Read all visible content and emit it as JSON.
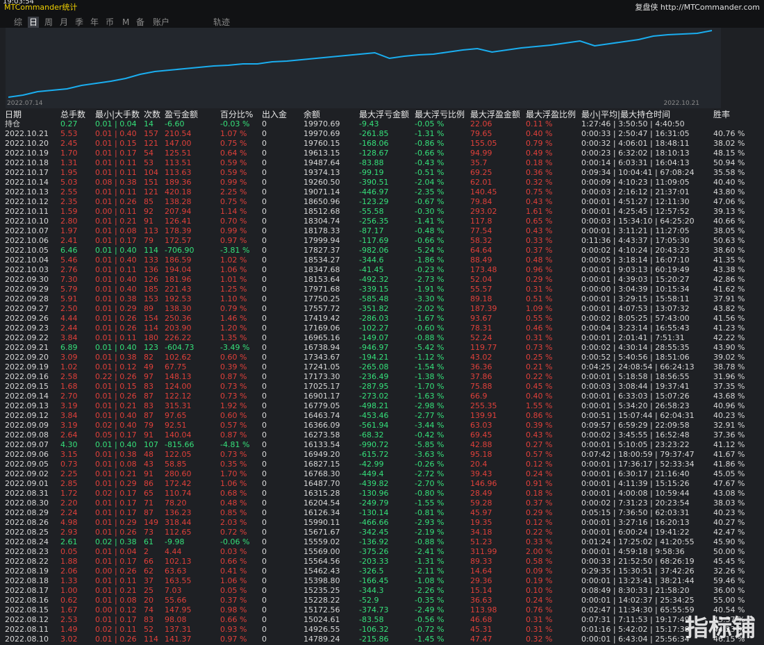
{
  "header": {
    "clock": "19:03:54",
    "title": "MTCommander统计",
    "brand": "复盘侠 http://MTCommander.com"
  },
  "tabs": [
    {
      "label": "综",
      "selected": false
    },
    {
      "label": "日",
      "selected": true
    },
    {
      "label": "周",
      "selected": false
    },
    {
      "label": "月",
      "selected": false
    },
    {
      "label": "季",
      "selected": false
    },
    {
      "label": "年",
      "selected": false
    },
    {
      "label": "币",
      "selected": false
    },
    {
      "label": "M",
      "selected": false
    },
    {
      "label": "备",
      "selected": false
    },
    {
      "label": "账户",
      "selected": false
    },
    {
      "label": "轨迹",
      "selected": false
    }
  ],
  "chart_data": {
    "type": "line",
    "color": "#1aaef0",
    "categories": [
      "2022.07.14",
      null,
      null,
      null,
      null,
      null,
      null,
      null,
      null,
      null,
      null,
      null,
      null,
      null,
      null,
      null,
      null,
      null,
      null,
      null,
      null,
      null,
      null,
      null,
      null,
      null,
      null,
      null,
      null,
      null,
      null,
      null,
      null,
      null,
      null,
      null,
      null,
      null,
      null,
      null,
      null,
      null,
      null,
      null,
      null,
      null,
      null,
      null,
      "2022.10.21"
    ],
    "values": [
      10,
      13,
      18,
      20,
      22,
      27,
      30,
      33,
      37,
      43,
      47,
      49,
      51,
      53,
      55,
      56,
      58,
      58,
      61,
      62,
      64,
      66,
      68,
      70,
      72,
      74,
      66,
      69,
      71,
      72,
      75,
      78,
      80,
      75,
      78,
      81,
      83,
      85,
      88,
      91,
      84,
      87,
      90,
      93,
      98,
      100,
      101,
      102,
      106
    ]
  },
  "table": {
    "columns": [
      "日期",
      "总手数",
      "最小|大手数",
      "次数",
      "盈亏金额",
      "百分比%",
      "出入金",
      "余额",
      "最大浮亏金额",
      "最大浮亏比例",
      "最大浮盈金额",
      "最大浮盈比例",
      "最小|平均|最大持仓时间",
      "胜率"
    ],
    "rows": [
      [
        "持仓",
        "0.27",
        "0.01 | 0.04",
        "14",
        "-6.60",
        "-0.03 %",
        "0",
        "19970.69",
        "-9.43",
        "-0.05 %",
        "22.06",
        "0.11 %",
        "1:27:46 | 3:50:50 | 4:40:50",
        ""
      ],
      [
        "2022.10.21",
        "5.53",
        "0.01 | 0.40",
        "157",
        "210.54",
        "1.07 %",
        "0",
        "19970.69",
        "-261.85",
        "-1.31 %",
        "79.65",
        "0.40 %",
        "0:00:33 | 2:50:47 | 16:31:05",
        "40.76 %"
      ],
      [
        "2022.10.20",
        "2.45",
        "0.01 | 0.15",
        "121",
        "147.00",
        "0.75 %",
        "0",
        "19760.15",
        "-168.06",
        "-0.86 %",
        "155.05",
        "0.79 %",
        "0:00:32 | 4:06:01 | 18:48:11",
        "38.02 %"
      ],
      [
        "2022.10.19",
        "1.70",
        "0.01 | 0.17",
        "54",
        "125.51",
        "0.64 %",
        "0",
        "19613.15",
        "-128.67",
        "-0.66 %",
        "94.99",
        "0.49 %",
        "0:00:23 | 6:32:02 | 18:10:13",
        "48.15 %"
      ],
      [
        "2022.10.18",
        "1.31",
        "0.01 | 0.11",
        "53",
        "113.51",
        "0.59 %",
        "0",
        "19487.64",
        "-83.88",
        "-0.43 %",
        "35.7",
        "0.18 %",
        "0:00:14 | 6:03:31 | 16:04:13",
        "50.94 %"
      ],
      [
        "2022.10.17",
        "1.95",
        "0.01 | 0.11",
        "104",
        "113.63",
        "0.59 %",
        "0",
        "19374.13",
        "-99.19",
        "-0.51 %",
        "69.25",
        "0.36 %",
        "0:09:34 | 10:04:41 | 67:08:24",
        "35.58 %"
      ],
      [
        "2022.10.14",
        "5.03",
        "0.08 | 0.38",
        "151",
        "189.36",
        "0.99 %",
        "0",
        "19260.50",
        "-390.51",
        "-2.04 %",
        "62.01",
        "0.32 %",
        "0:00:09 | 4:10:23 | 11:09:05",
        "40.40 %"
      ],
      [
        "2022.10.13",
        "2.55",
        "0.01 | 0.11",
        "121",
        "420.18",
        "2.25 %",
        "0",
        "19071.14",
        "-446.97",
        "-2.35 %",
        "140.45",
        "0.75 %",
        "0:00:03 | 2:16:12 | 21:37:01",
        "43.80 %"
      ],
      [
        "2022.10.12",
        "2.35",
        "0.01 | 0.26",
        "85",
        "138.28",
        "0.75 %",
        "0",
        "18650.96",
        "-123.29",
        "-0.67 %",
        "79.84",
        "0.43 %",
        "0:00:01 | 4:51:27 | 12:11:30",
        "47.06 %"
      ],
      [
        "2022.10.11",
        "1.59",
        "0.00 | 0.11",
        "92",
        "207.94",
        "1.14 %",
        "0",
        "18512.68",
        "-55.58",
        "-0.30 %",
        "293.02",
        "1.61 %",
        "0:00:01 | 4:25:45 | 12:57:52",
        "39.13 %"
      ],
      [
        "2022.10.10",
        "2.80",
        "0.01 | 0.21",
        "91",
        "126.41",
        "0.70 %",
        "0",
        "18304.74",
        "-256.35",
        "-1.41 %",
        "117.8",
        "0.65 %",
        "0:00:03 | 15:34:10 | 64:25:20",
        "40.66 %"
      ],
      [
        "2022.10.07",
        "1.97",
        "0.01 | 0.08",
        "113",
        "178.39",
        "0.99 %",
        "0",
        "18178.33",
        "-87.17",
        "-0.48 %",
        "77.54",
        "0.43 %",
        "0:00:01 | 3:11:21 | 11:27:05",
        "38.05 %"
      ],
      [
        "2022.10.06",
        "2.41",
        "0.01 | 0.17",
        "79",
        "172.57",
        "0.97 %",
        "0",
        "17999.94",
        "-117.69",
        "-0.66 %",
        "58.32",
        "0.33 %",
        "0:11:36 | 4:43:37 | 17:05:30",
        "50.63 %"
      ],
      [
        "2022.10.05",
        "6.46",
        "0.01 | 0.40",
        "114",
        "-706.90",
        "-3.81 %",
        "0",
        "17827.37",
        "-982.06",
        "-5.24 %",
        "64.64",
        "0.37 %",
        "0:00:02 | 4:10:24 | 20:43:23",
        "38.60 %"
      ],
      [
        "2022.10.04",
        "5.46",
        "0.01 | 0.40",
        "133",
        "186.59",
        "1.02 %",
        "0",
        "18534.27",
        "-344.6",
        "-1.86 %",
        "88.49",
        "0.48 %",
        "0:00:05 | 3:18:14 | 16:07:10",
        "41.35 %"
      ],
      [
        "2022.10.03",
        "2.76",
        "0.01 | 0.11",
        "136",
        "194.04",
        "1.06 %",
        "0",
        "18347.68",
        "-41.45",
        "-0.23 %",
        "173.48",
        "0.96 %",
        "0:00:01 | 9:03:13 | 60:19:49",
        "43.38 %"
      ],
      [
        "2022.09.30",
        "7.30",
        "0.01 | 0.40",
        "126",
        "181.96",
        "1.01 %",
        "0",
        "18153.64",
        "-492.32",
        "-2.73 %",
        "52.04",
        "0.29 %",
        "0:00:01 | 4:39:03 | 15:20:27",
        "42.86 %"
      ],
      [
        "2022.09.29",
        "5.79",
        "0.01 | 0.40",
        "185",
        "221.43",
        "1.25 %",
        "0",
        "17971.68",
        "-339.15",
        "-1.91 %",
        "55.57",
        "0.31 %",
        "0:00:00 | 3:04:39 | 10:15:34",
        "41.62 %"
      ],
      [
        "2022.09.28",
        "5.91",
        "0.01 | 0.38",
        "153",
        "192.53",
        "1.10 %",
        "0",
        "17750.25",
        "-585.48",
        "-3.30 %",
        "89.18",
        "0.51 %",
        "0:00:01 | 3:29:15 | 15:58:11",
        "37.91 %"
      ],
      [
        "2022.09.27",
        "2.50",
        "0.01 | 0.29",
        "89",
        "138.30",
        "0.79 %",
        "0",
        "17557.72",
        "-351.82",
        "-2.02 %",
        "187.39",
        "1.09 %",
        "0:00:01 | 4:07:53 | 13:07:32",
        "43.82 %"
      ],
      [
        "2022.09.26",
        "4.44",
        "0.01 | 0.26",
        "154",
        "250.36",
        "1.46 %",
        "0",
        "17419.42",
        "-286.03",
        "-1.67 %",
        "93.67",
        "0.55 %",
        "0:00:02 | 8:05:25 | 57:43:00",
        "41.56 %"
      ],
      [
        "2022.09.23",
        "2.44",
        "0.01 | 0.26",
        "114",
        "203.90",
        "1.20 %",
        "0",
        "17169.06",
        "-102.27",
        "-0.60 %",
        "78.31",
        "0.46 %",
        "0:00:04 | 3:23:14 | 16:55:43",
        "41.23 %"
      ],
      [
        "2022.09.22",
        "3.84",
        "0.01 | 0.11",
        "180",
        "226.22",
        "1.35 %",
        "0",
        "16965.16",
        "-149.07",
        "-0.88 %",
        "52.24",
        "0.31 %",
        "0:00:01 | 2:01:41 | 7:51:31",
        "42.22 %"
      ],
      [
        "2022.09.21",
        "6.89",
        "0.01 | 0.40",
        "123",
        "-604.73",
        "-3.49 %",
        "0",
        "16738.94",
        "-946.97",
        "-5.42 %",
        "119.77",
        "0.73 %",
        "0:00:02 | 4:30:14 | 28:55:35",
        "43.90 %"
      ],
      [
        "2022.09.20",
        "3.09",
        "0.01 | 0.38",
        "82",
        "102.62",
        "0.60 %",
        "0",
        "17343.67",
        "-194.21",
        "-1.12 %",
        "43.02",
        "0.25 %",
        "0:00:52 | 5:40:56 | 18:51:06",
        "39.02 %"
      ],
      [
        "2022.09.19",
        "1.02",
        "0.01 | 0.12",
        "49",
        "67.75",
        "0.39 %",
        "0",
        "17241.05",
        "-265.08",
        "-1.54 %",
        "36.36",
        "0.21 %",
        "0:04:25 | 24:08:54 | 66:24:13",
        "38.78 %"
      ],
      [
        "2022.09.16",
        "2.58",
        "0.22 | 0.26",
        "97",
        "148.13",
        "0.87 %",
        "0",
        "17173.30",
        "-236.49",
        "-1.38 %",
        "37.86",
        "0.22 %",
        "0:00:01 | 5:18:58 | 18:56:55",
        "31.96 %"
      ],
      [
        "2022.09.15",
        "1.68",
        "0.01 | 0.15",
        "83",
        "124.00",
        "0.73 %",
        "0",
        "17025.17",
        "-287.95",
        "-1.70 %",
        "75.88",
        "0.45 %",
        "0:00:03 | 3:08:44 | 19:37:41",
        "37.35 %"
      ],
      [
        "2022.09.14",
        "2.70",
        "0.01 | 0.26",
        "87",
        "122.12",
        "0.73 %",
        "0",
        "16901.17",
        "-273.02",
        "-1.63 %",
        "66.9",
        "0.40 %",
        "0:00:01 | 6:33:03 | 15:07:26",
        "43.68 %"
      ],
      [
        "2022.09.13",
        "3.19",
        "0.01 | 0.21",
        "83",
        "315.31",
        "1.92 %",
        "0",
        "16779.05",
        "-498.21",
        "-2.98 %",
        "255.35",
        "1.55 %",
        "0:00:01 | 5:34:20 | 26:58:23",
        "40.96 %"
      ],
      [
        "2022.09.12",
        "3.84",
        "0.01 | 0.40",
        "87",
        "97.65",
        "0.60 %",
        "0",
        "16463.74",
        "-453.46",
        "-2.77 %",
        "139.91",
        "0.86 %",
        "0:00:51 | 15:07:44 | 62:04:31",
        "40.23 %"
      ],
      [
        "2022.09.09",
        "3.19",
        "0.02 | 0.40",
        "79",
        "92.51",
        "0.57 %",
        "0",
        "16366.09",
        "-561.94",
        "-3.44 %",
        "63.03",
        "0.39 %",
        "0:09:57 | 6:59:29 | 22:09:58",
        "32.91 %"
      ],
      [
        "2022.09.08",
        "2.64",
        "0.05 | 0.17",
        "91",
        "140.04",
        "0.87 %",
        "0",
        "16273.58",
        "-68.32",
        "-0.42 %",
        "69.45",
        "0.43 %",
        "0:00:02 | 3:45:55 | 16:52:48",
        "37.36 %"
      ],
      [
        "2022.09.07",
        "4.30",
        "0.01 | 0.40",
        "107",
        "-815.66",
        "-4.81 %",
        "0",
        "16133.54",
        "-990.72",
        "-5.85 %",
        "42.88",
        "0.27 %",
        "0:00:01 | 5:10:05 | 23:23:22",
        "41.12 %"
      ],
      [
        "2022.09.06",
        "3.15",
        "0.01 | 0.38",
        "48",
        "122.05",
        "0.73 %",
        "0",
        "16949.20",
        "-615.72",
        "-3.63 %",
        "95.18",
        "0.57 %",
        "0:07:42 | 18:00:59 | 79:37:47",
        "41.67 %"
      ],
      [
        "2022.09.05",
        "0.73",
        "0.01 | 0.08",
        "43",
        "58.85",
        "0.35 %",
        "0",
        "16827.15",
        "-42.99",
        "-0.26 %",
        "20.4",
        "0.12 %",
        "0:00:01 | 17:36:17 | 52:33:34",
        "41.86 %"
      ],
      [
        "2022.09.02",
        "2.25",
        "0.01 | 0.21",
        "91",
        "280.60",
        "1.70 %",
        "0",
        "16768.30",
        "-449.4",
        "-2.72 %",
        "39.43",
        "0.24 %",
        "0:00:01 | 6:30:17 | 21:16:40",
        "45.05 %"
      ],
      [
        "2022.09.01",
        "2.85",
        "0.01 | 0.29",
        "86",
        "172.42",
        "1.06 %",
        "0",
        "16487.70",
        "-439.82",
        "-2.70 %",
        "146.96",
        "0.91 %",
        "0:00:01 | 4:11:39 | 15:15:26",
        "47.67 %"
      ],
      [
        "2022.08.31",
        "1.72",
        "0.02 | 0.17",
        "65",
        "110.74",
        "0.68 %",
        "0",
        "16315.28",
        "-130.96",
        "-0.80 %",
        "28.49",
        "0.18 %",
        "0:00:01 | 4:00:08 | 10:59:44",
        "43.08 %"
      ],
      [
        "2022.08.30",
        "2.20",
        "0.01 | 0.17",
        "71",
        "78.20",
        "0.48 %",
        "0",
        "16204.54",
        "-249.79",
        "-1.55 %",
        "59.28",
        "0.37 %",
        "0:00:02 | 7:31:23 | 20:23:54",
        "38.03 %"
      ],
      [
        "2022.08.29",
        "2.24",
        "0.01 | 0.17",
        "87",
        "136.23",
        "0.85 %",
        "0",
        "16126.34",
        "-130.14",
        "-0.81 %",
        "45.97",
        "0.29 %",
        "0:05:15 | 7:36:50 | 62:03:31",
        "40.23 %"
      ],
      [
        "2022.08.26",
        "4.98",
        "0.01 | 0.29",
        "149",
        "318.44",
        "2.03 %",
        "0",
        "15990.11",
        "-466.66",
        "-2.93 %",
        "19.35",
        "0.12 %",
        "0:00:01 | 3:27:16 | 16:20:13",
        "40.27 %"
      ],
      [
        "2022.08.25",
        "2.93",
        "0.01 | 0.26",
        "73",
        "112.65",
        "0.72 %",
        "0",
        "15671.67",
        "-342.45",
        "-2.19 %",
        "34.18",
        "0.22 %",
        "0:00:01 | 6:00:24 | 19:41:22",
        "42.47 %"
      ],
      [
        "2022.08.24",
        "2.61",
        "0.02 | 0.38",
        "61",
        "-9.98",
        "-0.06 %",
        "0",
        "15559.02",
        "-136.92",
        "-0.88 %",
        "51.23",
        "0.33 %",
        "0:01:24 | 17:25:02 | 41:20:55",
        "45.90 %"
      ],
      [
        "2022.08.23",
        "0.05",
        "0.01 | 0.04",
        "2",
        "4.44",
        "0.03 %",
        "0",
        "15569.00",
        "-375.26",
        "-2.41 %",
        "311.99",
        "2.00 %",
        "0:00:01 | 4:59:18 | 9:58:36",
        "50.00 %"
      ],
      [
        "2022.08.22",
        "1.88",
        "0.01 | 0.17",
        "66",
        "102.13",
        "0.66 %",
        "0",
        "15564.56",
        "-203.33",
        "-1.31 %",
        "89.33",
        "0.58 %",
        "0:00:33 | 21:52:50 | 68:26:19",
        "45.45 %"
      ],
      [
        "2022.08.19",
        "2.06",
        "0.00 | 0.26",
        "62",
        "63.63",
        "0.41 %",
        "0",
        "15462.43",
        "-326.5",
        "-2.11 %",
        "14.64",
        "0.09 %",
        "0:29:35 | 15:30:51 | 37:42:26",
        "32.26 %"
      ],
      [
        "2022.08.18",
        "1.33",
        "0.01 | 0.11",
        "37",
        "163.55",
        "1.06 %",
        "0",
        "15398.80",
        "-166.45",
        "-1.08 %",
        "29.36",
        "0.19 %",
        "0:00:01 | 13:23:41 | 38:21:44",
        "59.46 %"
      ],
      [
        "2022.08.17",
        "1.00",
        "0.01 | 0.21",
        "25",
        "7.03",
        "0.05 %",
        "0",
        "15235.25",
        "-344.3",
        "-2.26 %",
        "15.14",
        "0.10 %",
        "0:08:49 | 8:30:33 | 21:58:20",
        "36.00 %"
      ],
      [
        "2022.08.16",
        "0.62",
        "0.01 | 0.08",
        "20",
        "55.66",
        "0.37 %",
        "0",
        "15228.22",
        "-52.9",
        "-0.35 %",
        "36.63",
        "0.24 %",
        "0:00:01 | 14:02:37 | 25:34:25",
        "55.00 %"
      ],
      [
        "2022.08.15",
        "1.67",
        "0.00 | 0.12",
        "74",
        "147.95",
        "0.98 %",
        "0",
        "15172.56",
        "-374.73",
        "-2.49 %",
        "113.98",
        "0.76 %",
        "0:02:47 | 11:34:30 | 65:55:59",
        "40.54 %"
      ],
      [
        "2022.08.12",
        "2.53",
        "0.01 | 0.17",
        "83",
        "98.08",
        "0.66 %",
        "0",
        "15024.61",
        "-83.58",
        "-0.56 %",
        "46.68",
        "0.31 %",
        "0:07:31 | 7:11:53 | 19:17:49",
        "43.37 %"
      ],
      [
        "2022.08.11",
        "1.49",
        "0.02 | 0.11",
        "52",
        "137.31",
        "0.93 %",
        "0",
        "14926.55",
        "-106.32",
        "-0.72 %",
        "45.31",
        "0.31 %",
        "0:01:16 | 5:42:02 | 15:17:38",
        "44.23 %"
      ],
      [
        "2022.08.10",
        "3.02",
        "0.01 | 0.26",
        "114",
        "141.37",
        "0.97 %",
        "0",
        "14789.24",
        "-215.86",
        "-1.45 %",
        "47.47",
        "0.32 %",
        "0:00:01 | 6:43:04 | 25:56:34",
        "46.15 %"
      ]
    ]
  },
  "watermark": "指标铺"
}
